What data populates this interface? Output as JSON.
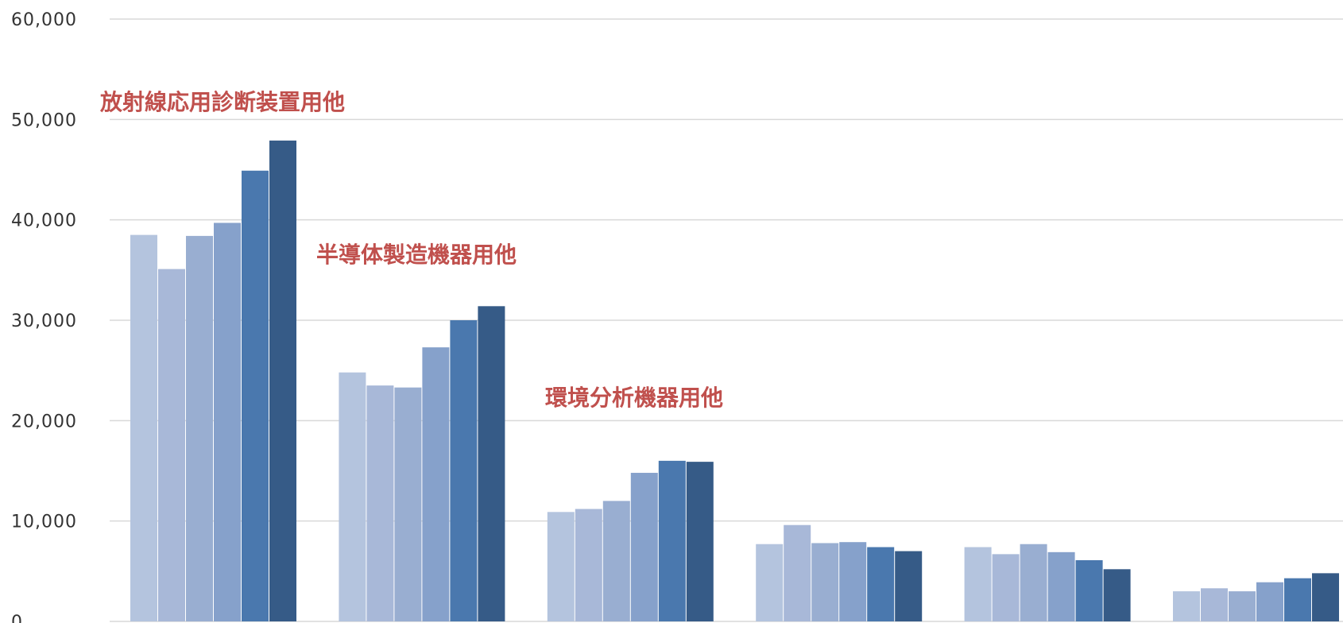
{
  "chart_data": {
    "type": "bar",
    "categories": [
      "放射線応用診断装置用他",
      "半導体製造機器用他",
      "環境分析機器用他",
      "",
      "",
      ""
    ],
    "series": [
      {
        "values": [
          38500,
          24800,
          10900,
          7700,
          7400,
          3000
        ]
      },
      {
        "values": [
          35100,
          23500,
          11200,
          9600,
          6700,
          3300
        ]
      },
      {
        "values": [
          38400,
          23300,
          12000,
          7800,
          7700,
          3000
        ]
      },
      {
        "values": [
          39700,
          27300,
          14800,
          7900,
          6900,
          3900
        ]
      },
      {
        "values": [
          44900,
          30000,
          16000,
          7400,
          6100,
          4300
        ]
      },
      {
        "values": [
          47900,
          31400,
          15900,
          7000,
          5200,
          4800
        ]
      }
    ],
    "series_colors": [
      "#b4c4de",
      "#a8b8d8",
      "#99aed1",
      "#86a1cb",
      "#4a78ae",
      "#365b87"
    ],
    "ylim": [
      0,
      60000
    ],
    "yticks": [
      "0",
      "10,000",
      "20,000",
      "30,000",
      "40,000",
      "50,000",
      "60,000"
    ],
    "annotations": [
      "放射線応用診断装置用他",
      "半導体製造機器用他",
      "環境分析機器用他"
    ],
    "annotation_color": "#c0504d",
    "grid": true,
    "legend": "none"
  }
}
